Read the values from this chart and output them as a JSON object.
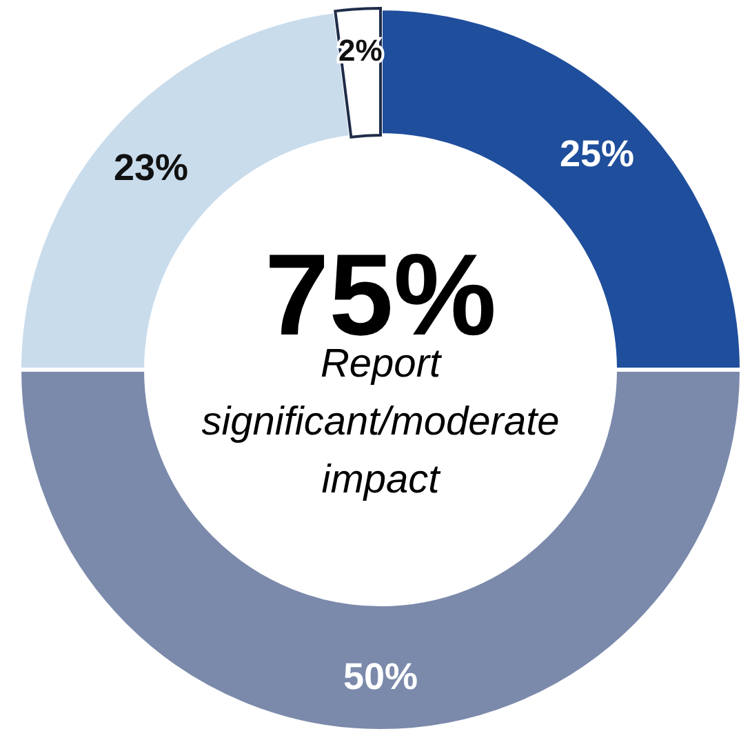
{
  "chart_data": {
    "type": "donut",
    "categories": [
      null,
      null,
      null,
      null
    ],
    "values": [
      25,
      50,
      23,
      2
    ],
    "colors": [
      "#1f4e9c",
      "#7b8aab",
      "#c9dcec",
      "#ffffff"
    ],
    "value_labels": [
      "25%",
      "50%",
      "23%",
      "2%"
    ],
    "annotations": [
      "75%",
      "Report significant/moderate impact"
    ]
  }
}
